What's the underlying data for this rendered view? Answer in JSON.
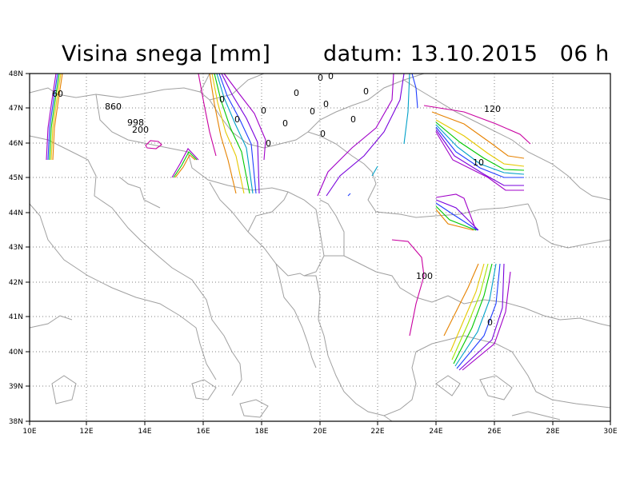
{
  "header": {
    "title": "Visina snega [mm]",
    "date_text": "datum: 13.10.2015   06 h"
  },
  "map": {
    "extent": {
      "lon": [
        10,
        30
      ],
      "lat": [
        38,
        48
      ]
    },
    "lon_ticks": [
      "10E",
      "12E",
      "14E",
      "16E",
      "18E",
      "20E",
      "22E",
      "24E",
      "26E",
      "28E",
      "30E"
    ],
    "lat_ticks": [
      "48N",
      "47N",
      "46N",
      "45N",
      "44N",
      "43N",
      "42N",
      "41N",
      "40N",
      "39N",
      "38N"
    ],
    "grid": "dotted",
    "contour_labels": [
      "60",
      "860",
      "998",
      "200",
      "0",
      "0",
      "0",
      "0",
      "0",
      "0",
      "0",
      "0",
      "0",
      "0",
      "0",
      "0",
      "120",
      "10",
      "100",
      "0"
    ],
    "colors": {
      "purple": "#a000c8",
      "violet": "#7800dc",
      "blue": "#1e3cff",
      "cyan": "#00a0c8",
      "green": "#00c800",
      "yellow": "#a0e600",
      "gold": "#e6c800",
      "orange": "#e68200",
      "magenta": "#c800a0",
      "border": "#a0a0a0"
    }
  }
}
